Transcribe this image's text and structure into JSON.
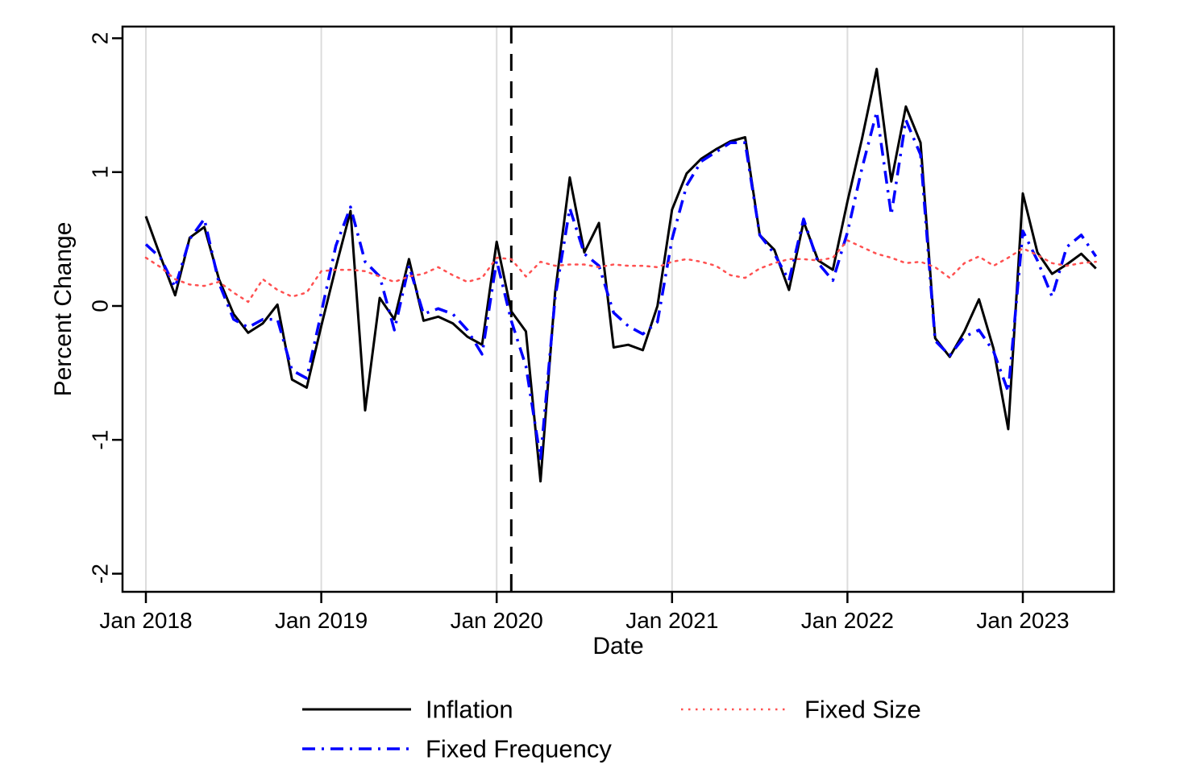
{
  "figure": {
    "ylabel": "Percent Change",
    "xlabel": "Date",
    "y_tick_labels": [
      "2",
      "1",
      "0",
      "-1",
      "-2"
    ],
    "x_tick_labels": [
      "Jan 2018",
      "Jan 2019",
      "Jan 2020",
      "Jan 2021",
      "Jan 2022",
      "Jan 2023"
    ],
    "colors": {
      "inflation": "#000000",
      "fixed_frequency": "#0000ff",
      "fixed_size": "#ff5050",
      "gridline": "#dcdcdc",
      "event_line": "#000000",
      "frame": "#000000"
    }
  },
  "chart_data": {
    "type": "line",
    "title": "",
    "xlabel": "Date",
    "ylabel": "Percent Change",
    "ylim": [
      -2,
      2
    ],
    "y_ticks": [
      2,
      1,
      0,
      -1,
      -2
    ],
    "x_start": "Jan 2018",
    "x_end": "Jun 2023",
    "x_frequency": "monthly",
    "x_tick_months": [
      0,
      12,
      24,
      36,
      48,
      60
    ],
    "x_tick_labels": [
      "Jan 2018",
      "Jan 2019",
      "Jan 2020",
      "Jan 2021",
      "Jan 2022",
      "Jan 2023"
    ],
    "grid": "vertical gridlines at each January",
    "legend_position": "bottom",
    "event_line": {
      "x_month": 25,
      "x_date": "Feb 2020",
      "style": "dashed",
      "color": "#000000"
    },
    "series": [
      {
        "name": "Inflation",
        "color": "#000000",
        "style": "solid",
        "values": [
          0.67,
          0.37,
          0.08,
          0.51,
          0.59,
          0.2,
          -0.06,
          -0.2,
          -0.13,
          0.01,
          -0.55,
          -0.61,
          -0.15,
          0.29,
          0.71,
          -0.78,
          0.06,
          -0.1,
          0.35,
          -0.11,
          -0.08,
          -0.13,
          -0.23,
          -0.29,
          0.48,
          -0.04,
          -0.19,
          -1.31,
          0.1,
          0.96,
          0.4,
          0.62,
          -0.31,
          -0.29,
          -0.33,
          0.0,
          0.72,
          0.99,
          1.1,
          1.17,
          1.23,
          1.26,
          0.53,
          0.42,
          0.12,
          0.63,
          0.34,
          0.27,
          0.78,
          1.25,
          1.77,
          0.93,
          1.49,
          1.22,
          -0.24,
          -0.38,
          -0.19,
          0.05,
          -0.32,
          -0.92,
          0.84,
          0.4,
          0.24,
          0.31,
          0.39,
          0.28
        ]
      },
      {
        "name": "Fixed Frequency",
        "color": "#0000ff",
        "style": "dash-dot",
        "values": [
          0.46,
          0.36,
          0.14,
          0.5,
          0.65,
          0.17,
          -0.1,
          -0.16,
          -0.1,
          -0.1,
          -0.48,
          -0.54,
          -0.05,
          0.45,
          0.74,
          0.33,
          0.22,
          -0.18,
          0.3,
          -0.06,
          -0.02,
          -0.06,
          -0.18,
          -0.36,
          0.34,
          -0.11,
          -0.45,
          -1.14,
          0.06,
          0.73,
          0.39,
          0.3,
          -0.05,
          -0.15,
          -0.21,
          -0.12,
          0.5,
          0.9,
          1.08,
          1.15,
          1.22,
          1.22,
          0.53,
          0.39,
          0.19,
          0.65,
          0.32,
          0.19,
          0.55,
          1.03,
          1.45,
          0.68,
          1.39,
          1.13,
          -0.26,
          -0.37,
          -0.23,
          -0.18,
          -0.34,
          -0.64,
          0.56,
          0.34,
          0.07,
          0.44,
          0.53,
          0.37
        ]
      },
      {
        "name": "Fixed Size",
        "color": "#ff5050",
        "style": "dotted",
        "values": [
          0.36,
          0.29,
          0.2,
          0.16,
          0.15,
          0.18,
          0.1,
          0.03,
          0.2,
          0.12,
          0.07,
          0.1,
          0.26,
          0.27,
          0.27,
          0.26,
          0.22,
          0.18,
          0.22,
          0.24,
          0.29,
          0.23,
          0.18,
          0.21,
          0.36,
          0.35,
          0.22,
          0.33,
          0.3,
          0.31,
          0.31,
          0.29,
          0.31,
          0.3,
          0.3,
          0.29,
          0.33,
          0.35,
          0.33,
          0.3,
          0.23,
          0.21,
          0.28,
          0.32,
          0.35,
          0.35,
          0.34,
          0.36,
          0.49,
          0.44,
          0.39,
          0.36,
          0.32,
          0.33,
          0.29,
          0.21,
          0.32,
          0.37,
          0.3,
          0.36,
          0.43,
          0.38,
          0.32,
          0.3,
          0.32,
          0.33
        ]
      }
    ],
    "legend": [
      {
        "series_index": 0,
        "label": "Inflation",
        "col": 0,
        "row": 0
      },
      {
        "series_index": 2,
        "label": "Fixed Size",
        "col": 1,
        "row": 0
      },
      {
        "series_index": 1,
        "label": "Fixed Frequency",
        "col": 0,
        "row": 1
      }
    ]
  }
}
